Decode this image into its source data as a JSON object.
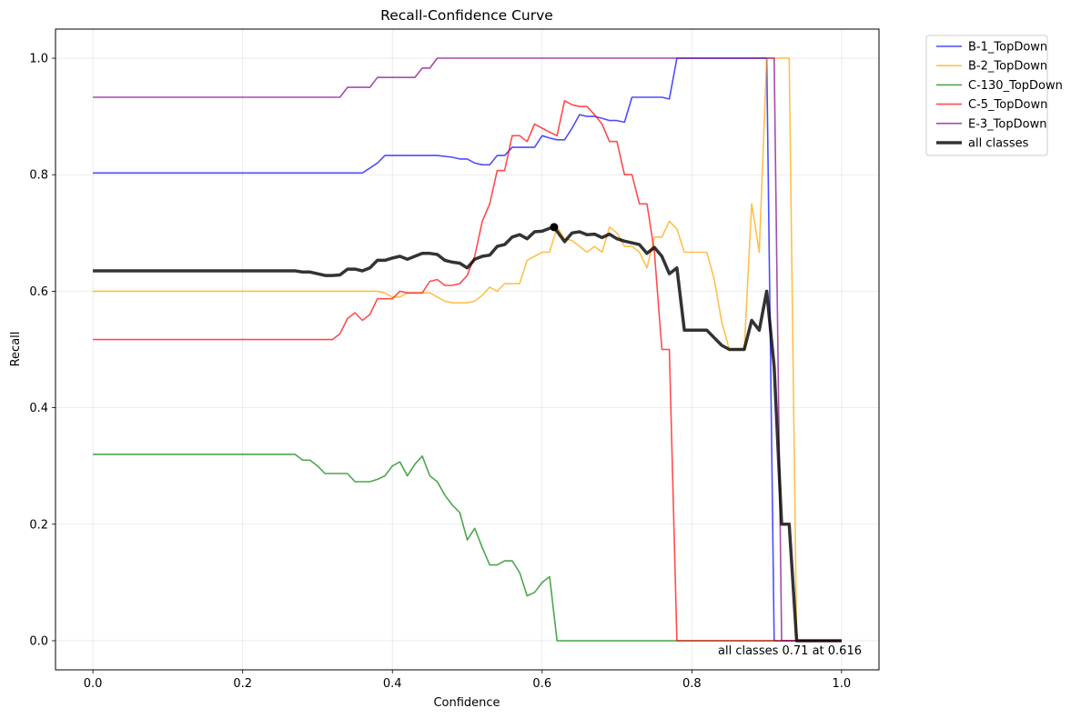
{
  "chart_data": {
    "type": "line",
    "title": "Recall-Confidence Curve",
    "xlabel": "Confidence",
    "ylabel": "Recall",
    "xlim": [
      -0.05,
      1.05
    ],
    "ylim": [
      -0.05,
      1.05
    ],
    "xticks": [
      0.0,
      0.2,
      0.4,
      0.6,
      0.8,
      1.0
    ],
    "xtick_labels": [
      "0.0",
      "0.2",
      "0.4",
      "0.6",
      "0.8",
      "1.0"
    ],
    "yticks": [
      0.0,
      0.2,
      0.4,
      0.6,
      0.8,
      1.0
    ],
    "ytick_labels": [
      "0.0",
      "0.2",
      "0.4",
      "0.6",
      "0.8",
      "1.0"
    ],
    "grid": true,
    "legend_position": "outside-top-right",
    "series": [
      {
        "name": "B-1_TopDown",
        "color": "#0000ff",
        "x": [
          0.0,
          0.36,
          0.38,
          0.39,
          0.46,
          0.48,
          0.49,
          0.5,
          0.51,
          0.52,
          0.53,
          0.54,
          0.55,
          0.56,
          0.57,
          0.58,
          0.59,
          0.6,
          0.61,
          0.62,
          0.63,
          0.64,
          0.65,
          0.66,
          0.67,
          0.68,
          0.69,
          0.7,
          0.71,
          0.72,
          0.73,
          0.74,
          0.75,
          0.76,
          0.77,
          0.78,
          0.79,
          0.9,
          0.91,
          1.0
        ],
        "y": [
          0.803,
          0.803,
          0.82,
          0.833,
          0.833,
          0.83,
          0.827,
          0.827,
          0.82,
          0.817,
          0.817,
          0.833,
          0.833,
          0.847,
          0.847,
          0.847,
          0.847,
          0.867,
          0.863,
          0.86,
          0.86,
          0.88,
          0.903,
          0.9,
          0.9,
          0.897,
          0.893,
          0.893,
          0.89,
          0.933,
          0.933,
          0.933,
          0.933,
          0.933,
          0.93,
          1.0,
          1.0,
          1.0,
          0.0,
          0.0
        ]
      },
      {
        "name": "B-2_TopDown",
        "color": "#ffa500",
        "x": [
          0.0,
          0.38,
          0.39,
          0.4,
          0.41,
          0.42,
          0.45,
          0.46,
          0.47,
          0.48,
          0.5,
          0.51,
          0.52,
          0.53,
          0.54,
          0.55,
          0.56,
          0.57,
          0.58,
          0.59,
          0.6,
          0.61,
          0.62,
          0.63,
          0.64,
          0.65,
          0.66,
          0.67,
          0.68,
          0.69,
          0.7,
          0.71,
          0.72,
          0.73,
          0.74,
          0.75,
          0.76,
          0.77,
          0.78,
          0.79,
          0.8,
          0.81,
          0.82,
          0.83,
          0.84,
          0.85,
          0.86,
          0.87,
          0.88,
          0.89,
          0.9,
          0.91,
          0.92,
          0.93,
          0.94,
          1.0
        ],
        "y": [
          0.6,
          0.6,
          0.597,
          0.59,
          0.59,
          0.597,
          0.597,
          0.59,
          0.583,
          0.58,
          0.58,
          0.583,
          0.593,
          0.607,
          0.6,
          0.613,
          0.613,
          0.613,
          0.653,
          0.66,
          0.667,
          0.667,
          0.71,
          0.69,
          0.687,
          0.677,
          0.667,
          0.677,
          0.667,
          0.71,
          0.7,
          0.677,
          0.677,
          0.667,
          0.64,
          0.693,
          0.693,
          0.72,
          0.707,
          0.667,
          0.667,
          0.667,
          0.667,
          0.62,
          0.547,
          0.5,
          0.5,
          0.5,
          0.75,
          0.667,
          1.0,
          1.0,
          1.0,
          1.0,
          0.0,
          0.0
        ]
      },
      {
        "name": "C-130_TopDown",
        "color": "#008000",
        "x": [
          0.0,
          0.27,
          0.28,
          0.29,
          0.3,
          0.31,
          0.32,
          0.33,
          0.34,
          0.35,
          0.36,
          0.37,
          0.38,
          0.39,
          0.4,
          0.41,
          0.42,
          0.43,
          0.44,
          0.45,
          0.46,
          0.47,
          0.48,
          0.49,
          0.5,
          0.51,
          0.52,
          0.53,
          0.54,
          0.55,
          0.56,
          0.57,
          0.58,
          0.59,
          0.6,
          0.61,
          0.62,
          0.63,
          1.0
        ],
        "y": [
          0.32,
          0.32,
          0.31,
          0.31,
          0.3,
          0.287,
          0.287,
          0.287,
          0.287,
          0.273,
          0.273,
          0.273,
          0.277,
          0.283,
          0.3,
          0.307,
          0.283,
          0.303,
          0.317,
          0.283,
          0.273,
          0.25,
          0.233,
          0.22,
          0.173,
          0.193,
          0.16,
          0.13,
          0.13,
          0.137,
          0.137,
          0.117,
          0.077,
          0.083,
          0.1,
          0.11,
          0.0,
          0.0,
          0.0
        ]
      },
      {
        "name": "C-5_TopDown",
        "color": "#ff0000",
        "x": [
          0.0,
          0.32,
          0.33,
          0.34,
          0.35,
          0.36,
          0.37,
          0.38,
          0.39,
          0.4,
          0.41,
          0.42,
          0.43,
          0.44,
          0.45,
          0.46,
          0.47,
          0.48,
          0.49,
          0.5,
          0.51,
          0.52,
          0.53,
          0.54,
          0.55,
          0.56,
          0.57,
          0.58,
          0.59,
          0.6,
          0.61,
          0.62,
          0.63,
          0.64,
          0.65,
          0.66,
          0.67,
          0.68,
          0.69,
          0.7,
          0.71,
          0.72,
          0.73,
          0.74,
          0.75,
          0.76,
          0.77,
          0.78,
          0.79,
          0.9,
          1.0
        ],
        "y": [
          0.517,
          0.517,
          0.527,
          0.553,
          0.563,
          0.55,
          0.56,
          0.587,
          0.587,
          0.587,
          0.6,
          0.597,
          0.597,
          0.597,
          0.617,
          0.62,
          0.61,
          0.61,
          0.613,
          0.627,
          0.66,
          0.72,
          0.75,
          0.807,
          0.807,
          0.867,
          0.867,
          0.857,
          0.887,
          0.88,
          0.873,
          0.867,
          0.927,
          0.92,
          0.917,
          0.917,
          0.903,
          0.887,
          0.857,
          0.857,
          0.8,
          0.8,
          0.75,
          0.75,
          0.667,
          0.5,
          0.5,
          0.0,
          0.0,
          0.0,
          0.0
        ]
      },
      {
        "name": "E-3_TopDown",
        "color": "#800080",
        "x": [
          0.0,
          0.33,
          0.34,
          0.37,
          0.38,
          0.43,
          0.44,
          0.45,
          0.46,
          0.9,
          0.91,
          0.92,
          1.0
        ],
        "y": [
          0.933,
          0.933,
          0.95,
          0.95,
          0.967,
          0.967,
          0.983,
          0.983,
          1.0,
          1.0,
          1.0,
          0.0,
          0.0
        ]
      },
      {
        "name": "all classes",
        "color": "#000000",
        "thick": true,
        "x": [
          0.0,
          0.27,
          0.28,
          0.29,
          0.3,
          0.31,
          0.32,
          0.33,
          0.34,
          0.35,
          0.36,
          0.37,
          0.38,
          0.39,
          0.4,
          0.41,
          0.42,
          0.43,
          0.44,
          0.45,
          0.46,
          0.47,
          0.48,
          0.49,
          0.5,
          0.51,
          0.52,
          0.53,
          0.54,
          0.55,
          0.56,
          0.57,
          0.58,
          0.59,
          0.6,
          0.61,
          0.616,
          0.63,
          0.64,
          0.65,
          0.66,
          0.67,
          0.68,
          0.69,
          0.7,
          0.71,
          0.72,
          0.73,
          0.74,
          0.75,
          0.76,
          0.77,
          0.78,
          0.79,
          0.8,
          0.81,
          0.82,
          0.83,
          0.84,
          0.85,
          0.86,
          0.87,
          0.88,
          0.89,
          0.9,
          0.91,
          0.92,
          0.93,
          0.94,
          1.0
        ],
        "y": [
          0.635,
          0.635,
          0.633,
          0.633,
          0.63,
          0.627,
          0.627,
          0.628,
          0.638,
          0.638,
          0.635,
          0.64,
          0.653,
          0.653,
          0.657,
          0.66,
          0.655,
          0.66,
          0.665,
          0.665,
          0.663,
          0.653,
          0.65,
          0.648,
          0.64,
          0.655,
          0.66,
          0.662,
          0.677,
          0.68,
          0.693,
          0.697,
          0.69,
          0.702,
          0.703,
          0.708,
          0.71,
          0.685,
          0.7,
          0.702,
          0.697,
          0.698,
          0.692,
          0.698,
          0.69,
          0.686,
          0.683,
          0.68,
          0.665,
          0.675,
          0.66,
          0.63,
          0.64,
          0.533,
          0.533,
          0.533,
          0.533,
          0.52,
          0.507,
          0.5,
          0.5,
          0.5,
          0.55,
          0.533,
          0.6,
          0.47,
          0.2,
          0.2,
          0.0,
          0.0
        ]
      }
    ],
    "best_point": {
      "x": 0.616,
      "y": 0.71
    },
    "annotation": "all classes 0.71 at 0.616"
  }
}
